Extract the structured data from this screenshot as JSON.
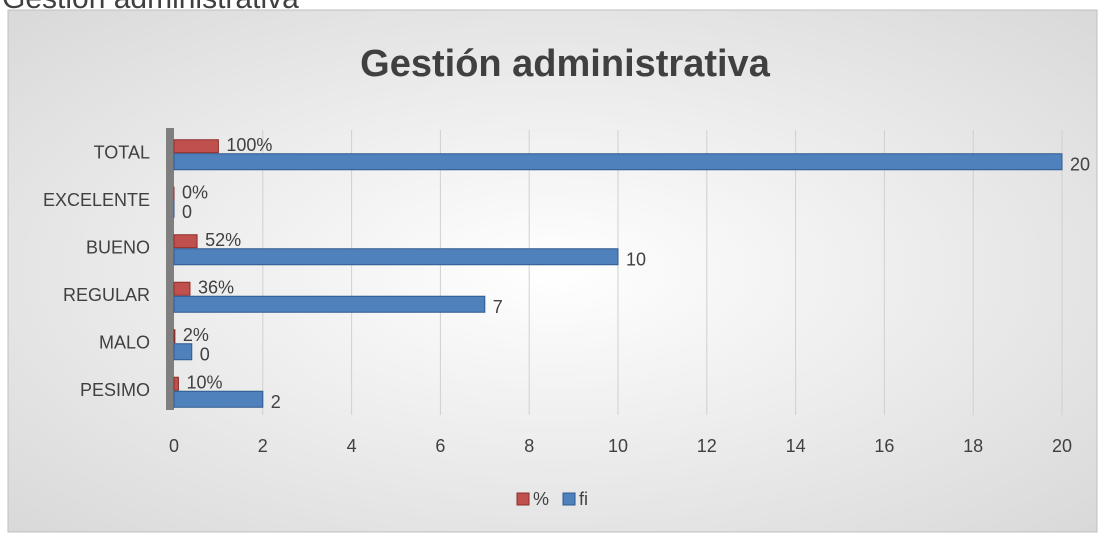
{
  "caption": "Gestión administrativa",
  "chart_data": {
    "type": "hbar",
    "title": "Gestión administrativa",
    "categories": [
      "PESIMO",
      "MALO",
      "REGULAR",
      "BUENO",
      "EXCELENTE",
      "TOTAL"
    ],
    "series": [
      {
        "name": "%",
        "color": "#c0504d",
        "values": [
          0.1,
          0.02,
          0.36,
          0.52,
          0,
          1
        ],
        "value_labels": [
          "10%",
          "2%",
          "36%",
          "52%",
          "0%",
          "100%"
        ]
      },
      {
        "name": "fi",
        "color": "#4f81bd",
        "values": [
          2,
          0.4,
          7,
          10,
          0,
          20
        ],
        "value_labels": [
          "2",
          "0",
          "7",
          "10",
          "0",
          "20"
        ]
      }
    ],
    "xlim": [
      0,
      20
    ],
    "xticks": [
      0,
      2,
      4,
      6,
      8,
      10,
      12,
      14,
      16,
      18,
      20
    ],
    "grid": true,
    "legend": "bottom"
  }
}
